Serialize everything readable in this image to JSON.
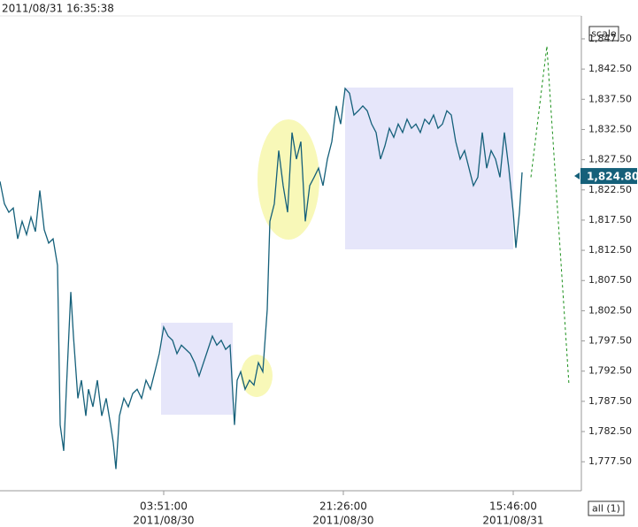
{
  "header": {
    "timestamp": "2011/08/31 16:35:38"
  },
  "controls": {
    "scale": "scale",
    "all": "all (1)"
  },
  "chart_data": {
    "type": "line",
    "xlim": [
      0,
      657
    ],
    "ylim": [
      1772.7,
      1851.3
    ],
    "xticks": [
      {
        "value": 185,
        "label": "03:51:00"
      },
      {
        "value": 388,
        "label": "21:26:00"
      },
      {
        "value": 580,
        "label": "15:46:00"
      }
    ],
    "xtick_dates": [
      "2011/08/30",
      "2011/08/30",
      "2011/08/31"
    ],
    "yticks": [
      {
        "value": 1777.5,
        "label": "1,777.50"
      },
      {
        "value": 1782.5,
        "label": "1,782.50"
      },
      {
        "value": 1787.5,
        "label": "1,787.50"
      },
      {
        "value": 1792.5,
        "label": "1,792.50"
      },
      {
        "value": 1797.5,
        "label": "1,797.50"
      },
      {
        "value": 1802.5,
        "label": "1,802.50"
      },
      {
        "value": 1807.5,
        "label": "1,807.50"
      },
      {
        "value": 1812.5,
        "label": "1,812.50"
      },
      {
        "value": 1817.5,
        "label": "1,817.50"
      },
      {
        "value": 1822.5,
        "label": "1,822.50"
      },
      {
        "value": 1827.5,
        "label": "1,827.50"
      },
      {
        "value": 1832.5,
        "label": "1,832.50"
      },
      {
        "value": 1837.5,
        "label": "1,837.50"
      },
      {
        "value": 1842.5,
        "label": "1,842.50"
      },
      {
        "value": 1847.5,
        "label": "1,847.50"
      }
    ],
    "grid": false,
    "last_price": {
      "value": 1824.8,
      "label": "1,824.80"
    },
    "series": [
      {
        "color": "#15607a",
        "dashed": false,
        "x": [
          0,
          5,
          10,
          15,
          20,
          25,
          30,
          35,
          40,
          45,
          50,
          55,
          60,
          65,
          68,
          72,
          75,
          80,
          83,
          88,
          92,
          97,
          100,
          105,
          110,
          115,
          120,
          125,
          128,
          131,
          135,
          140,
          145,
          150,
          155,
          160,
          165,
          170,
          175,
          180,
          185,
          190,
          195,
          200,
          205,
          210,
          215,
          220,
          225,
          230,
          235,
          240,
          245,
          250,
          255,
          260,
          265,
          268,
          272,
          277,
          282,
          287,
          292,
          297,
          302,
          305,
          310,
          315,
          320,
          325,
          330,
          335,
          340,
          345,
          350,
          355,
          360,
          365,
          370,
          375,
          380,
          385,
          390,
          395,
          400,
          405,
          410,
          415,
          420,
          425,
          430,
          435,
          440,
          445,
          450,
          455,
          460,
          465,
          470,
          475,
          480,
          485,
          490,
          495,
          500,
          505,
          510,
          515,
          520,
          525,
          530,
          535,
          540,
          545,
          550,
          555,
          560,
          565,
          570,
          575,
          580,
          583,
          587,
          590
        ],
        "values": [
          1823.9,
          1820.2,
          1818.8,
          1819.5,
          1814.4,
          1817.3,
          1815.1,
          1818.0,
          1815.6,
          1822.4,
          1815.9,
          1813.7,
          1814.4,
          1810.0,
          1783.6,
          1779.3,
          1789.5,
          1805.6,
          1798.3,
          1788.0,
          1791.0,
          1785.1,
          1789.5,
          1786.6,
          1791.0,
          1785.1,
          1788.0,
          1783.6,
          1780.7,
          1776.3,
          1785.1,
          1788.0,
          1786.6,
          1788.8,
          1789.5,
          1788.0,
          1791.0,
          1789.5,
          1792.4,
          1795.4,
          1799.8,
          1798.3,
          1797.6,
          1795.4,
          1796.8,
          1796.1,
          1795.4,
          1793.9,
          1791.7,
          1793.9,
          1796.1,
          1798.3,
          1796.8,
          1797.6,
          1796.1,
          1796.8,
          1783.6,
          1791.0,
          1792.4,
          1789.5,
          1791.0,
          1790.2,
          1793.9,
          1792.4,
          1802.7,
          1817.3,
          1820.2,
          1829.0,
          1823.2,
          1818.8,
          1832.0,
          1827.6,
          1830.5,
          1817.3,
          1823.2,
          1824.6,
          1826.1,
          1823.2,
          1827.6,
          1830.5,
          1836.4,
          1833.4,
          1839.3,
          1838.5,
          1834.9,
          1835.6,
          1836.4,
          1835.6,
          1833.4,
          1832.0,
          1827.6,
          1829.8,
          1832.7,
          1831.2,
          1833.4,
          1832.0,
          1834.2,
          1832.7,
          1833.4,
          1832.0,
          1834.2,
          1833.4,
          1834.9,
          1832.7,
          1833.4,
          1835.6,
          1834.9,
          1830.5,
          1827.6,
          1829.0,
          1826.1,
          1823.2,
          1824.6,
          1832.0,
          1826.1,
          1829.0,
          1827.6,
          1824.6,
          1832.0,
          1826.1,
          1818.8,
          1812.9,
          1818.8,
          1825.4
        ]
      },
      {
        "color": "#1a8f1a",
        "dashed": true,
        "x": [
          600,
          618,
          643
        ],
        "values": [
          1824.6,
          1846.3,
          1790.2
        ]
      }
    ]
  }
}
